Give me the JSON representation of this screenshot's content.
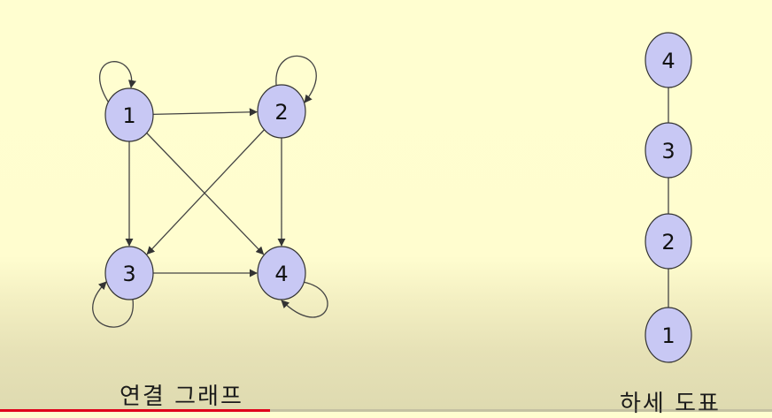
{
  "connected_graph": {
    "caption": "연결 그래프",
    "nodes": [
      {
        "id": "1",
        "label": "1"
      },
      {
        "id": "2",
        "label": "2"
      },
      {
        "id": "3",
        "label": "3"
      },
      {
        "id": "4",
        "label": "4"
      }
    ],
    "edges": [
      {
        "from": "1",
        "to": "2"
      },
      {
        "from": "1",
        "to": "3"
      },
      {
        "from": "1",
        "to": "4"
      },
      {
        "from": "2",
        "to": "3"
      },
      {
        "from": "2",
        "to": "4"
      },
      {
        "from": "3",
        "to": "4"
      }
    ],
    "self_loops": [
      "1",
      "2",
      "3",
      "4"
    ]
  },
  "hasse_diagram": {
    "caption": "하세 도표",
    "nodes_top_to_bottom": [
      "4",
      "3",
      "2",
      "1"
    ],
    "edges": [
      {
        "from": "1",
        "to": "2"
      },
      {
        "from": "2",
        "to": "3"
      },
      {
        "from": "3",
        "to": "4"
      }
    ]
  },
  "colors": {
    "node_fill": "#c8c8f4",
    "node_stroke": "#333333",
    "edge": "#444444",
    "progress": "#e0001b"
  },
  "video_progress": 0.35
}
